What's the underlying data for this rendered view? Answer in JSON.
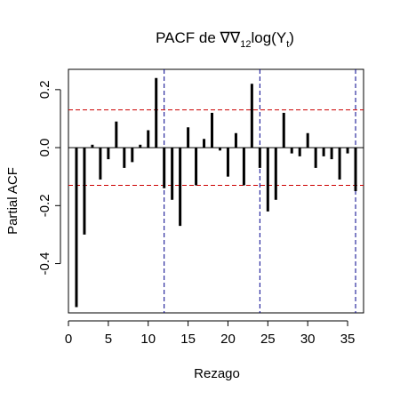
{
  "chart_data": {
    "type": "bar",
    "title_main": "PACF de ∇∇",
    "title_sub1": "12",
    "title_mid": "log(Y",
    "title_sub2": "t",
    "title_end": ")",
    "xlabel": "Rezago",
    "ylabel": "Partial ACF",
    "xlim": [
      0,
      37
    ],
    "ylim": [
      -0.57,
      0.27
    ],
    "xticks": [
      0,
      5,
      10,
      15,
      20,
      25,
      30,
      35
    ],
    "yticks": [
      -0.4,
      -0.2,
      0.0,
      0.2
    ],
    "ytick_labels": [
      "-0.4",
      "-0.2",
      "0.0",
      "0.2"
    ],
    "confidence_limit": 0.13,
    "seasonal_lags": [
      12,
      24,
      36
    ],
    "x": [
      1,
      2,
      3,
      4,
      5,
      6,
      7,
      8,
      9,
      10,
      11,
      12,
      13,
      14,
      15,
      16,
      17,
      18,
      19,
      20,
      21,
      22,
      23,
      24,
      25,
      26,
      27,
      28,
      29,
      30,
      31,
      32,
      33,
      34,
      35,
      36
    ],
    "values": [
      -0.55,
      -0.3,
      0.01,
      -0.11,
      -0.04,
      0.09,
      -0.07,
      -0.05,
      0.01,
      0.06,
      0.24,
      -0.14,
      -0.18,
      -0.27,
      0.07,
      -0.13,
      0.03,
      0.12,
      -0.01,
      -0.1,
      0.05,
      -0.13,
      0.22,
      -0.07,
      -0.22,
      -0.18,
      0.12,
      -0.02,
      -0.03,
      0.05,
      -0.07,
      -0.03,
      -0.04,
      -0.11,
      -0.02,
      -0.15
    ],
    "colors": {
      "bar": "#000000",
      "ci": "#cc0000",
      "seasonal": "#00008b",
      "axis": "#000000"
    }
  }
}
